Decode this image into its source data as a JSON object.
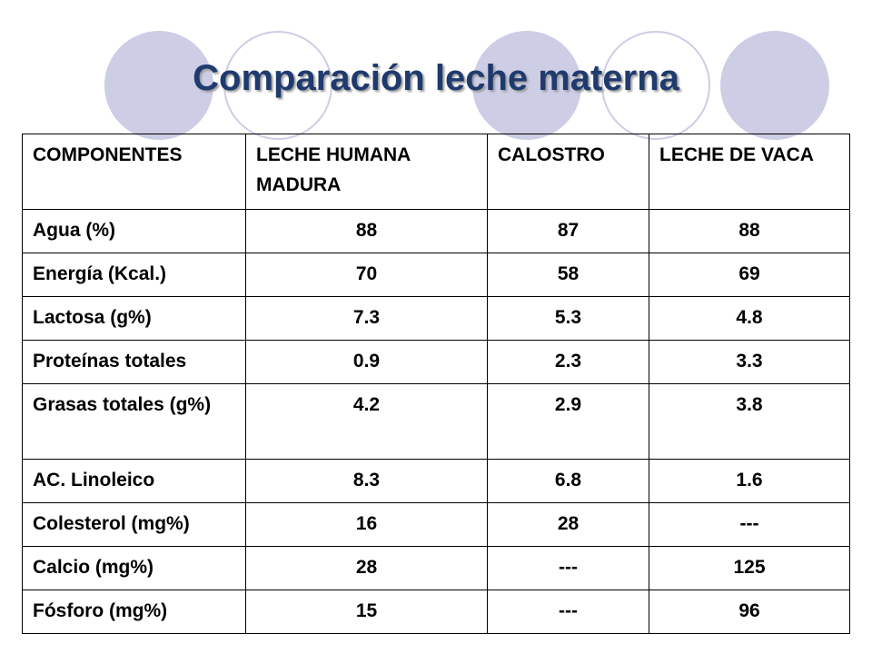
{
  "title": "Comparación leche materna",
  "colors": {
    "title": "#1f3a6e",
    "circle": "#cdcde6",
    "border": "#000000"
  },
  "table": {
    "headers": [
      "COMPONENTES",
      "LECHE HUMANA MADURA",
      "CALOSTRO",
      "LECHE DE VACA"
    ],
    "rows": [
      [
        "Agua (%)",
        "88",
        "87",
        "88"
      ],
      [
        "Energía (Kcal.)",
        "70",
        "58",
        "69"
      ],
      [
        "Lactosa (g%)",
        "7.3",
        "5.3",
        "4.8"
      ],
      [
        "Proteínas totales",
        "0.9",
        "2.3",
        "3.3"
      ],
      [
        "Grasas totales (g%)",
        "4.2",
        "2.9",
        "3.8"
      ],
      [
        "AC. Linoleico",
        "8.3",
        "6.8",
        "1.6"
      ],
      [
        "Colesterol (mg%)",
        "16",
        "28",
        "---"
      ],
      [
        "Calcio (mg%)",
        "28",
        "---",
        "125"
      ],
      [
        "Fósforo (mg%)",
        "15",
        "---",
        "96"
      ]
    ]
  }
}
